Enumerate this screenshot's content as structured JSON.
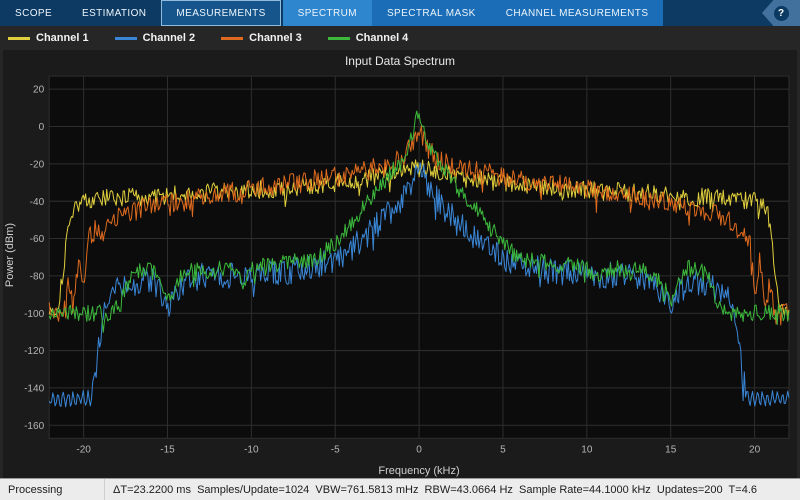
{
  "toolbar": {
    "tabs": [
      {
        "label": "SCOPE",
        "group": "main",
        "selected": false
      },
      {
        "label": "ESTIMATION",
        "group": "main",
        "selected": false
      },
      {
        "label": "MEASUREMENTS",
        "group": "main",
        "selected": true
      },
      {
        "label": "SPECTRUM",
        "group": "contextual",
        "selected": true
      },
      {
        "label": "SPECTRAL MASK",
        "group": "contextual",
        "selected": false
      },
      {
        "label": "CHANNEL MEASUREMENTS",
        "group": "contextual",
        "selected": false
      }
    ],
    "help_label": "?",
    "colors": {
      "bar_bg": "#0d3a63",
      "contextual_bg": "#1a6db6",
      "active_tab_bg": "#2e86cf"
    }
  },
  "legend": {
    "items": [
      {
        "label": "Channel 1",
        "color": "#e0cf3c"
      },
      {
        "label": "Channel 2",
        "color": "#3a86d6"
      },
      {
        "label": "Channel 3",
        "color": "#dd6a1e"
      },
      {
        "label": "Channel 4",
        "color": "#3cb83c"
      }
    ]
  },
  "chart_data": {
    "type": "line",
    "title": "Input Data Spectrum",
    "xlabel": "Frequency (kHz)",
    "ylabel": "Power (dBm)",
    "xlim": [
      -22.05,
      22.05
    ],
    "ylim": [
      -167,
      27
    ],
    "xticks": [
      -20,
      -15,
      -10,
      -5,
      0,
      5,
      10,
      15,
      20
    ],
    "yticks": [
      20,
      0,
      -20,
      -40,
      -60,
      -80,
      -100,
      -120,
      -140,
      -160
    ],
    "grid": true,
    "plot_bg": "#0c0c0c",
    "grid_color": "#2e2e2e",
    "tick_color": "#b5b5b5",
    "sample_step_khz": 0.07,
    "series": [
      {
        "name": "Channel 1",
        "color": "#e0cf3c",
        "noise_db": 5,
        "seed": 101,
        "envelope": [
          [
            -22.05,
            -97
          ],
          [
            -21.6,
            -100
          ],
          [
            -21.2,
            -75
          ],
          [
            -20.8,
            -45
          ],
          [
            -20,
            -40
          ],
          [
            -18,
            -38
          ],
          [
            -16,
            -38
          ],
          [
            -14,
            -36
          ],
          [
            -12,
            -35
          ],
          [
            -10,
            -34
          ],
          [
            -8,
            -33
          ],
          [
            -6,
            -31
          ],
          [
            -4,
            -29
          ],
          [
            -2,
            -26
          ],
          [
            -1,
            -24
          ],
          [
            0,
            -22
          ],
          [
            1,
            -24
          ],
          [
            2,
            -26
          ],
          [
            4,
            -29
          ],
          [
            6,
            -31
          ],
          [
            8,
            -33
          ],
          [
            10,
            -34
          ],
          [
            12,
            -35
          ],
          [
            14,
            -36
          ],
          [
            16,
            -38
          ],
          [
            18,
            -38
          ],
          [
            20,
            -40
          ],
          [
            20.8,
            -45
          ],
          [
            21.2,
            -75
          ],
          [
            21.6,
            -100
          ],
          [
            22.05,
            -97
          ]
        ]
      },
      {
        "name": "Channel 2",
        "color": "#3a86d6",
        "noise_db": 7,
        "seed": 202,
        "ripple": {
          "floor_db": -140,
          "period_khz": 0.3,
          "amplitude_db": 3.5
        },
        "envelope": [
          [
            -22.05,
            -146
          ],
          [
            -19.6,
            -146
          ],
          [
            -19.3,
            -135
          ],
          [
            -19,
            -110
          ],
          [
            -18.6,
            -95
          ],
          [
            -18,
            -88
          ],
          [
            -17,
            -84
          ],
          [
            -16,
            -82
          ],
          [
            -15.3,
            -90
          ],
          [
            -15,
            -97
          ],
          [
            -14.6,
            -90
          ],
          [
            -14,
            -84
          ],
          [
            -13,
            -80
          ],
          [
            -12,
            -79
          ],
          [
            -11,
            -80
          ],
          [
            -10,
            -79
          ],
          [
            -9,
            -78
          ],
          [
            -8,
            -78
          ],
          [
            -7,
            -76
          ],
          [
            -6,
            -74
          ],
          [
            -5,
            -71
          ],
          [
            -4,
            -65
          ],
          [
            -3,
            -57
          ],
          [
            -2,
            -48
          ],
          [
            -1.5,
            -44
          ],
          [
            -1,
            -38
          ],
          [
            -0.5,
            -30
          ],
          [
            0,
            -21
          ],
          [
            0.5,
            -30
          ],
          [
            1,
            -38
          ],
          [
            1.5,
            -44
          ],
          [
            2,
            -48
          ],
          [
            3,
            -57
          ],
          [
            4,
            -65
          ],
          [
            5,
            -71
          ],
          [
            6,
            -74
          ],
          [
            7,
            -76
          ],
          [
            8,
            -78
          ],
          [
            9,
            -78
          ],
          [
            10,
            -79
          ],
          [
            11,
            -80
          ],
          [
            12,
            -79
          ],
          [
            13,
            -80
          ],
          [
            14,
            -84
          ],
          [
            14.6,
            -90
          ],
          [
            15,
            -97
          ],
          [
            15.3,
            -90
          ],
          [
            16,
            -82
          ],
          [
            17,
            -84
          ],
          [
            18,
            -88
          ],
          [
            18.6,
            -95
          ],
          [
            19,
            -110
          ],
          [
            19.3,
            -135
          ],
          [
            19.6,
            -146
          ],
          [
            22.05,
            -146
          ]
        ]
      },
      {
        "name": "Channel 3",
        "color": "#dd6a1e",
        "noise_db": 5.5,
        "seed": 303,
        "envelope": [
          [
            -22.05,
            -99
          ],
          [
            -21.2,
            -99
          ],
          [
            -20.9,
            -85
          ],
          [
            -20.6,
            -97
          ],
          [
            -20.3,
            -70
          ],
          [
            -20,
            -90
          ],
          [
            -19.7,
            -60
          ],
          [
            -19.3,
            -55
          ],
          [
            -19,
            -58
          ],
          [
            -18.5,
            -50
          ],
          [
            -18,
            -48
          ],
          [
            -17,
            -45
          ],
          [
            -16,
            -43
          ],
          [
            -15,
            -41
          ],
          [
            -14,
            -40
          ],
          [
            -13,
            -38
          ],
          [
            -12,
            -36
          ],
          [
            -11,
            -35
          ],
          [
            -10,
            -34
          ],
          [
            -9,
            -32
          ],
          [
            -8,
            -31
          ],
          [
            -7,
            -30
          ],
          [
            -6,
            -28
          ],
          [
            -5,
            -27
          ],
          [
            -4,
            -25
          ],
          [
            -3,
            -23
          ],
          [
            -2,
            -21
          ],
          [
            -1,
            -17
          ],
          [
            -0.5,
            -11
          ],
          [
            -0.2,
            -5
          ],
          [
            0,
            -2
          ],
          [
            0.2,
            -5
          ],
          [
            0.5,
            -11
          ],
          [
            1,
            -17
          ],
          [
            2,
            -21
          ],
          [
            3,
            -23
          ],
          [
            4,
            -25
          ],
          [
            5,
            -27
          ],
          [
            6,
            -28
          ],
          [
            7,
            -30
          ],
          [
            8,
            -31
          ],
          [
            9,
            -32
          ],
          [
            10,
            -34
          ],
          [
            11,
            -35
          ],
          [
            12,
            -36
          ],
          [
            13,
            -38
          ],
          [
            14,
            -40
          ],
          [
            15,
            -41
          ],
          [
            16,
            -43
          ],
          [
            17,
            -45
          ],
          [
            18,
            -48
          ],
          [
            18.5,
            -50
          ],
          [
            19,
            -58
          ],
          [
            19.3,
            -55
          ],
          [
            19.7,
            -60
          ],
          [
            20,
            -90
          ],
          [
            20.3,
            -70
          ],
          [
            20.6,
            -97
          ],
          [
            20.9,
            -85
          ],
          [
            21.2,
            -99
          ],
          [
            22.05,
            -99
          ]
        ]
      },
      {
        "name": "Channel 4",
        "color": "#3cb83c",
        "noise_db": 4.5,
        "seed": 404,
        "envelope": [
          [
            -22.05,
            -100
          ],
          [
            -18.3,
            -100
          ],
          [
            -17.8,
            -95
          ],
          [
            -17.3,
            -82
          ],
          [
            -16.8,
            -77
          ],
          [
            -16,
            -76
          ],
          [
            -15.4,
            -84
          ],
          [
            -15,
            -93
          ],
          [
            -14.6,
            -86
          ],
          [
            -14,
            -79
          ],
          [
            -13,
            -76
          ],
          [
            -12.5,
            -80
          ],
          [
            -12,
            -76
          ],
          [
            -11,
            -78
          ],
          [
            -10.5,
            -84
          ],
          [
            -10,
            -76
          ],
          [
            -9,
            -74
          ],
          [
            -8,
            -73
          ],
          [
            -7,
            -72
          ],
          [
            -6,
            -70
          ],
          [
            -5.5,
            -66
          ],
          [
            -5,
            -62
          ],
          [
            -4.5,
            -57
          ],
          [
            -4,
            -52
          ],
          [
            -3.5,
            -46
          ],
          [
            -3,
            -40
          ],
          [
            -2.5,
            -34
          ],
          [
            -2,
            -29
          ],
          [
            -1.5,
            -23
          ],
          [
            -1,
            -17
          ],
          [
            -0.5,
            -8
          ],
          [
            -0.2,
            2
          ],
          [
            0,
            9
          ],
          [
            0.2,
            2
          ],
          [
            0.5,
            -8
          ],
          [
            1,
            -17
          ],
          [
            1.5,
            -23
          ],
          [
            2,
            -29
          ],
          [
            2.5,
            -34
          ],
          [
            3,
            -40
          ],
          [
            3.5,
            -46
          ],
          [
            4,
            -52
          ],
          [
            4.5,
            -57
          ],
          [
            5,
            -62
          ],
          [
            5.5,
            -66
          ],
          [
            6,
            -70
          ],
          [
            7,
            -72
          ],
          [
            8,
            -73
          ],
          [
            9,
            -74
          ],
          [
            10,
            -76
          ],
          [
            10.5,
            -84
          ],
          [
            11,
            -78
          ],
          [
            12,
            -76
          ],
          [
            12.5,
            -80
          ],
          [
            13,
            -76
          ],
          [
            14,
            -79
          ],
          [
            14.6,
            -86
          ],
          [
            15,
            -93
          ],
          [
            15.4,
            -84
          ],
          [
            16,
            -76
          ],
          [
            16.8,
            -77
          ],
          [
            17.3,
            -82
          ],
          [
            17.8,
            -95
          ],
          [
            18.3,
            -100
          ],
          [
            22.05,
            -100
          ]
        ]
      }
    ]
  },
  "status_bar": {
    "mode": "Processing",
    "stats": "ΔT=23.2200 ms  Samples/Update=1024  VBW=761.5813 mHz  RBW=43.0664 Hz  Sample Rate=44.1000 kHz  Updates=200  T=4.6"
  }
}
